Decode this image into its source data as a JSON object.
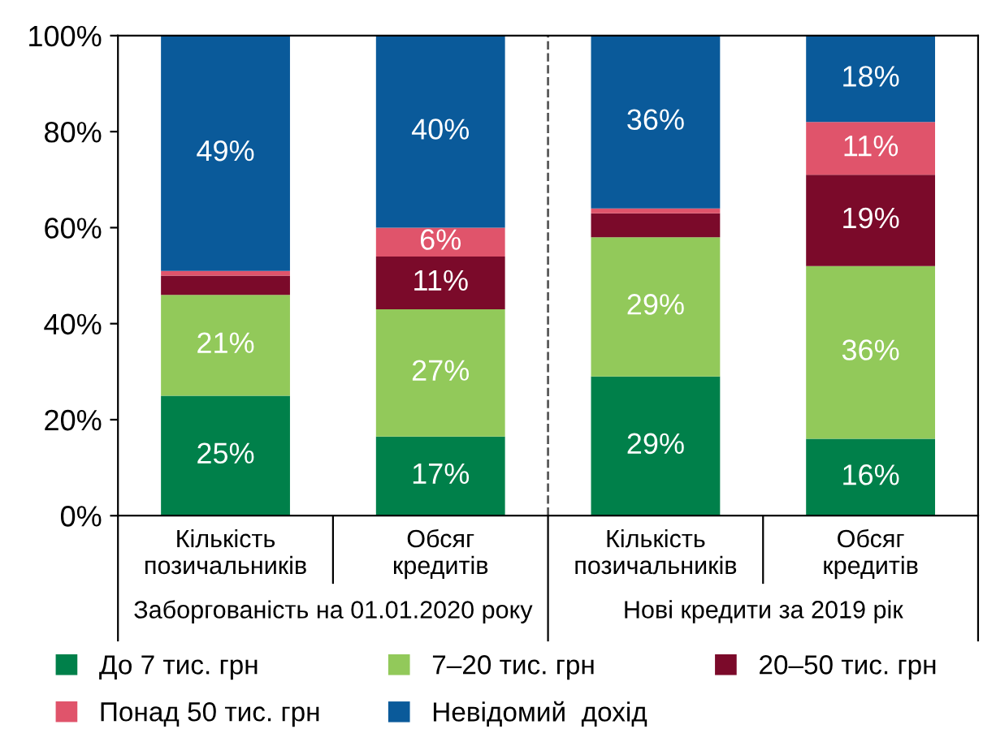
{
  "chart_data": {
    "type": "bar",
    "stacked": true,
    "categories": [
      "Кількість\nпозичальників",
      "Обсяг\nкредитів",
      "Кількість\nпозичальників",
      "Обсяг\nкредитів"
    ],
    "series": [
      {
        "name": "До 7 тис. грн",
        "color": "#00804a",
        "values": [
          25,
          16.5,
          29,
          16
        ],
        "value_labels": [
          "25%",
          "17%",
          "29%",
          "16%"
        ]
      },
      {
        "name": "7–20 тис. грн",
        "color": "#92c95a",
        "values": [
          21,
          26.5,
          29,
          36
        ],
        "value_labels": [
          "21%",
          "27%",
          "29%",
          "36%"
        ]
      },
      {
        "name": "20–50 тис. грн",
        "color": "#7b0a2a",
        "values": [
          4,
          11,
          5,
          19
        ],
        "value_labels": [
          null,
          "11%",
          null,
          "19%"
        ]
      },
      {
        "name": "Понад 50 тис. грн",
        "color": "#e0546b",
        "values": [
          1,
          6,
          1,
          11
        ],
        "value_labels": [
          null,
          "6%",
          null,
          "11%"
        ]
      },
      {
        "name": "Невідомий  дохід",
        "color": "#0a5a9a",
        "values": [
          49,
          40,
          36,
          18
        ],
        "value_labels": [
          "49%",
          "40%",
          "36%",
          "18%"
        ]
      }
    ],
    "ylim": [
      0,
      100
    ],
    "yticks": [
      {
        "value": 0,
        "label": "0%"
      },
      {
        "value": 20,
        "label": "20%"
      },
      {
        "value": 40,
        "label": "40%"
      },
      {
        "value": 60,
        "label": "60%"
      },
      {
        "value": 80,
        "label": "80%"
      },
      {
        "value": 100,
        "label": "100%"
      }
    ],
    "annotations": [
      "Заборгованість на 01.01.2020 року",
      "Нові кредити за 2019 рік"
    ],
    "legend": "bottom",
    "grid": false
  }
}
